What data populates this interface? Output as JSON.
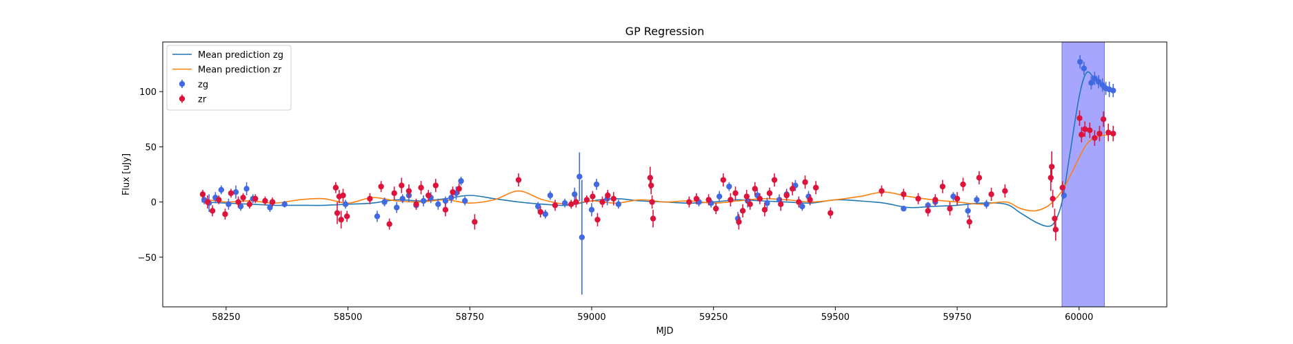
{
  "chart_data": {
    "type": "scatter",
    "title": "GP Regression",
    "xlabel": "MJD",
    "ylabel": "Flux [uJy]",
    "xlim": [
      58120,
      60180
    ],
    "ylim": [
      -95,
      145
    ],
    "xticks": [
      58250,
      58500,
      58750,
      59000,
      59250,
      59500,
      59750,
      60000
    ],
    "yticks": [
      -50,
      0,
      50,
      100
    ],
    "grid": false,
    "legend_position": "top-left",
    "highlight_region": {
      "x_start": 59965,
      "x_end": 60052,
      "color": "#a6a6ff"
    },
    "series": [
      {
        "name": "Mean prediction zg",
        "kind": "line",
        "color": "#1f77b4",
        "x": [
          58200,
          58250,
          58300,
          58350,
          58400,
          58450,
          58500,
          58550,
          58600,
          58650,
          58700,
          58750,
          58800,
          58850,
          58900,
          58950,
          59000,
          59050,
          59100,
          59150,
          59200,
          59250,
          59300,
          59350,
          59400,
          59450,
          59500,
          59550,
          59600,
          59650,
          59700,
          59750,
          59800,
          59850,
          59880,
          59910,
          59935,
          59950,
          59965,
          59980,
          60000,
          60015,
          60030,
          60045,
          60060,
          60075
        ],
        "y": [
          0,
          -1,
          -2,
          -3,
          -3,
          -3,
          -2,
          -1,
          2,
          1,
          3,
          6,
          3,
          0,
          -2,
          -3,
          1,
          3,
          1,
          0,
          -1,
          0,
          2,
          1,
          0,
          -1,
          2,
          1,
          -1,
          -5,
          -4,
          -3,
          -1,
          -2,
          -10,
          -18,
          -22,
          -18,
          0,
          40,
          95,
          117,
          113,
          107,
          103,
          101
        ]
      },
      {
        "name": "Mean prediction zr",
        "kind": "line",
        "color": "#ff7f0e",
        "x": [
          58200,
          58250,
          58300,
          58350,
          58400,
          58450,
          58500,
          58550,
          58600,
          58650,
          58700,
          58750,
          58800,
          58850,
          58900,
          58950,
          59000,
          59050,
          59100,
          59150,
          59200,
          59250,
          59300,
          59350,
          59400,
          59450,
          59500,
          59550,
          59600,
          59650,
          59700,
          59750,
          59800,
          59850,
          59880,
          59910,
          59935,
          59950,
          59965,
          59980,
          60000,
          60015,
          60030,
          60045,
          60060,
          60075
        ],
        "y": [
          3,
          0,
          1,
          -1,
          2,
          3,
          -1,
          4,
          1,
          0,
          2,
          -1,
          2,
          10,
          2,
          -2,
          1,
          -1,
          2,
          0,
          1,
          -1,
          1,
          3,
          2,
          0,
          2,
          5,
          9,
          5,
          2,
          0,
          -2,
          0,
          -6,
          -8,
          -4,
          2,
          10,
          22,
          40,
          52,
          58,
          60,
          61,
          62
        ]
      },
      {
        "name": "zg",
        "kind": "errorbar",
        "color": "#4169e1",
        "x": [
          58205,
          58215,
          58228,
          58240,
          58255,
          58270,
          58280,
          58292,
          58305,
          58340,
          58370,
          58495,
          58560,
          58575,
          58600,
          58612,
          58625,
          58640,
          58655,
          58670,
          58685,
          58700,
          58712,
          58722,
          58732,
          58740,
          58890,
          58905,
          58915,
          58945,
          58965,
          58975,
          58980,
          59000,
          59010,
          59032,
          59055,
          59220,
          59245,
          59262,
          59282,
          59300,
          59320,
          59340,
          59360,
          59385,
          59400,
          59418,
          59432,
          59445,
          59640,
          59690,
          59705,
          59742,
          59772,
          59790,
          59810,
          59969,
          60002,
          60010,
          60025,
          60032,
          60040,
          60048,
          60055,
          60062,
          60070
        ],
        "y": [
          2,
          -1,
          4,
          11,
          -2,
          9,
          -4,
          12,
          3,
          -5,
          -2,
          -2,
          -13,
          0,
          -5,
          3,
          6,
          -3,
          1,
          4,
          -2,
          1,
          4,
          8,
          19,
          1,
          -4,
          -11,
          6,
          -1,
          7,
          23,
          -32,
          -7,
          16,
          3,
          -2,
          0,
          -1,
          5,
          14,
          -15,
          1,
          6,
          -1,
          2,
          7,
          15,
          -4,
          5,
          -6,
          -3,
          0,
          5,
          -8,
          2,
          -2,
          6,
          127,
          121,
          108,
          112,
          109,
          106,
          103,
          102,
          101
        ],
        "err": [
          4,
          8,
          5,
          4,
          5,
          6,
          4,
          6,
          4,
          4,
          3,
          4,
          5,
          4,
          5,
          4,
          6,
          4,
          5,
          5,
          5,
          4,
          5,
          6,
          4,
          4,
          4,
          4,
          4,
          4,
          6,
          22,
          52,
          6,
          5,
          6,
          4,
          4,
          4,
          5,
          4,
          6,
          6,
          5,
          5,
          5,
          5,
          5,
          4,
          5,
          2,
          3,
          4,
          4,
          6,
          4,
          4,
          3,
          6,
          6,
          6,
          6,
          6,
          6,
          6,
          7,
          6
        ]
      },
      {
        "name": "zr",
        "kind": "errorbar",
        "color": "#dc143c",
        "x": [
          58202,
          58212,
          58222,
          58235,
          58248,
          58260,
          58275,
          58285,
          58298,
          58310,
          58330,
          58345,
          58475,
          58478,
          58482,
          58486,
          58490,
          58498,
          58545,
          58568,
          58585,
          58595,
          58610,
          58625,
          58640,
          58650,
          58665,
          58680,
          58700,
          58715,
          58728,
          58760,
          58850,
          58895,
          58925,
          58958,
          58968,
          58990,
          59002,
          59012,
          59022,
          59033,
          59045,
          59120,
          59122,
          59124,
          59126,
          59200,
          59215,
          59240,
          59255,
          59270,
          59285,
          59295,
          59302,
          59310,
          59318,
          59325,
          59335,
          59345,
          59355,
          59365,
          59375,
          59388,
          59400,
          59412,
          59425,
          59438,
          59448,
          59460,
          59490,
          59595,
          59640,
          59670,
          59690,
          59705,
          59720,
          59735,
          59750,
          59762,
          59775,
          59795,
          59820,
          59848,
          59942,
          59944,
          59946,
          59950,
          59952,
          59966,
          60001,
          60005,
          60012,
          60022,
          60032,
          60042,
          60050,
          60060,
          60070
        ],
        "y": [
          7,
          0,
          -8,
          2,
          -11,
          8,
          0,
          4,
          -2,
          3,
          1,
          0,
          13,
          -10,
          5,
          -16,
          6,
          -13,
          3,
          14,
          -20,
          8,
          15,
          10,
          -2,
          13,
          6,
          15,
          -7,
          9,
          12,
          -18,
          20,
          -9,
          -3,
          -2,
          0,
          2,
          5,
          -16,
          0,
          6,
          3,
          22,
          15,
          0,
          -15,
          0,
          3,
          2,
          -6,
          20,
          2,
          8,
          -18,
          -8,
          5,
          -2,
          12,
          3,
          -7,
          8,
          20,
          -2,
          6,
          12,
          0,
          18,
          2,
          13,
          -10,
          10,
          7,
          3,
          -8,
          2,
          14,
          -6,
          3,
          16,
          -18,
          22,
          7,
          10,
          22,
          32,
          3,
          -15,
          -25,
          13,
          76,
          61,
          66,
          65,
          58,
          62,
          75,
          63,
          62
        ],
        "err": [
          4,
          6,
          5,
          4,
          5,
          4,
          5,
          4,
          4,
          4,
          4,
          4,
          5,
          10,
          6,
          8,
          6,
          5,
          5,
          5,
          5,
          6,
          7,
          6,
          5,
          6,
          5,
          6,
          6,
          5,
          5,
          7,
          6,
          5,
          5,
          4,
          5,
          4,
          5,
          6,
          5,
          5,
          6,
          10,
          8,
          6,
          8,
          5,
          5,
          5,
          5,
          6,
          6,
          6,
          7,
          6,
          6,
          5,
          6,
          5,
          6,
          5,
          6,
          6,
          5,
          6,
          5,
          6,
          5,
          6,
          5,
          5,
          5,
          5,
          5,
          5,
          6,
          6,
          6,
          6,
          6,
          6,
          6,
          6,
          12,
          14,
          8,
          9,
          10,
          6,
          7,
          7,
          7,
          7,
          7,
          7,
          7,
          8,
          7
        ]
      }
    ]
  }
}
